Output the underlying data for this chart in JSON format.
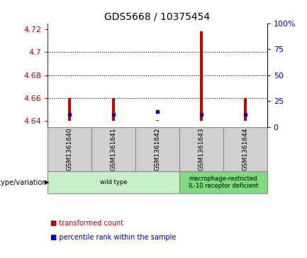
{
  "title": "GDS5668 / 10375454",
  "samples": [
    "GSM1361640",
    "GSM1361641",
    "GSM1361642",
    "GSM1361643",
    "GSM1361644"
  ],
  "red_values": [
    4.66,
    4.66,
    4.641,
    4.718,
    4.66
  ],
  "blue_values": [
    4.646,
    4.646,
    4.648,
    4.646,
    4.646
  ],
  "ylim_left": [
    4.635,
    4.725
  ],
  "ylim_right": [
    0,
    100
  ],
  "yticks_left": [
    4.64,
    4.66,
    4.68,
    4.7,
    4.72
  ],
  "ytick_labels_left": [
    "4.64",
    "4.66",
    "4.68",
    "4.7",
    "4.72"
  ],
  "yticks_right": [
    0,
    25,
    50,
    75,
    100
  ],
  "ytick_labels_right": [
    "0",
    "25",
    "50",
    "75",
    "100%"
  ],
  "baseline": 4.64,
  "dotted_lines": [
    4.66,
    4.68,
    4.7
  ],
  "genotype_groups": [
    {
      "label": "wild type",
      "indices": [
        0,
        1,
        2
      ],
      "color": "#c8f0c8"
    },
    {
      "label": "macrophage-restricted\nIL-10 receptor deficient",
      "indices": [
        3,
        4
      ],
      "color": "#80d880"
    }
  ],
  "legend_items": [
    {
      "label": "transformed count",
      "color": "#cc0000"
    },
    {
      "label": "percentile rank within the sample",
      "color": "#0000cc"
    }
  ],
  "genotype_label": "genotype/variation",
  "bar_color": "#cc0000",
  "dot_color": "#0000cc",
  "left_axis_color": "#cc0000",
  "right_axis_color": "#0000cc",
  "bg_color": "#ffffff",
  "plot_bg": "#ffffff",
  "grid_color": "#000000",
  "sample_box_color": "#d0d0d0",
  "bar_width": 0.07
}
